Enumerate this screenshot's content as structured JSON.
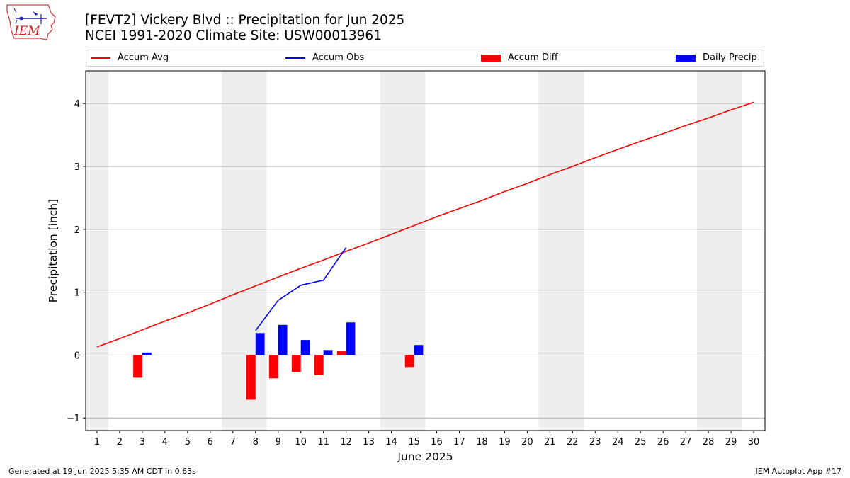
{
  "header": {
    "title": "[FEVT2] Vickery Blvd :: Precipitation for Jun 2025",
    "subtitle": "NCEI 1991-2020 Climate Site: USW00013961"
  },
  "logo": {
    "text": "IEM"
  },
  "footer": {
    "left": "Generated at 19 Jun 2025 5:35 AM CDT in 0.63s",
    "right": "IEM Autoplot App #17"
  },
  "colors": {
    "accum_avg": "#ff0000",
    "accum_obs": "#0000ff",
    "accum_diff": "#ff0000",
    "daily_precip": "#0000ff",
    "weekend_band": "#eeeeee",
    "grid": "#b0b0b0"
  },
  "chart_data": {
    "type": "bar",
    "xlabel": "June 2025",
    "ylabel": "Precipitation [inch]",
    "xlim": [
      0.5,
      30.5
    ],
    "ylim": [
      -1.2,
      4.52
    ],
    "x_ticks": [
      1,
      2,
      3,
      4,
      5,
      6,
      7,
      8,
      9,
      10,
      11,
      12,
      13,
      14,
      15,
      16,
      17,
      18,
      19,
      20,
      21,
      22,
      23,
      24,
      25,
      26,
      27,
      28,
      29,
      30
    ],
    "y_ticks": [
      -1,
      0,
      1,
      2,
      3,
      4
    ],
    "grid": "horizontal",
    "legend_position": "top",
    "weekend_bands": [
      [
        0.5,
        1.5
      ],
      [
        6.5,
        8.5
      ],
      [
        13.5,
        15.5
      ],
      [
        20.5,
        22.5
      ],
      [
        27.5,
        29.5
      ]
    ],
    "legend": [
      "Accum Avg",
      "Accum Obs",
      "Accum Diff",
      "Daily Precip"
    ],
    "accum_avg": {
      "name": "Accum Avg",
      "x": [
        1,
        2,
        3,
        4,
        5,
        6,
        7,
        8,
        9,
        10,
        11,
        12,
        13,
        14,
        15,
        16,
        17,
        18,
        19,
        20,
        21,
        22,
        23,
        24,
        25,
        26,
        27,
        28,
        29,
        30
      ],
      "y": [
        0.13,
        0.26,
        0.4,
        0.54,
        0.67,
        0.81,
        0.96,
        1.1,
        1.24,
        1.38,
        1.51,
        1.65,
        1.78,
        1.92,
        2.06,
        2.2,
        2.33,
        2.46,
        2.6,
        2.73,
        2.87,
        3.0,
        3.14,
        3.27,
        3.4,
        3.52,
        3.65,
        3.77,
        3.9,
        4.02
      ]
    },
    "accum_obs": {
      "name": "Accum Obs",
      "x": [
        8,
        9,
        10,
        11,
        12
      ],
      "y": [
        0.39,
        0.87,
        1.11,
        1.19,
        1.71
      ]
    },
    "accum_diff": {
      "name": "Accum Diff",
      "x": [
        3,
        8,
        9,
        10,
        11,
        12,
        15
      ],
      "y": [
        -0.36,
        -0.71,
        -0.37,
        -0.27,
        -0.32,
        0.06,
        -0.19
      ]
    },
    "daily_precip": {
      "name": "Daily Precip",
      "x": [
        3,
        8,
        9,
        10,
        11,
        12,
        15
      ],
      "y": [
        0.04,
        0.35,
        0.48,
        0.24,
        0.08,
        0.52,
        0.16
      ]
    }
  }
}
